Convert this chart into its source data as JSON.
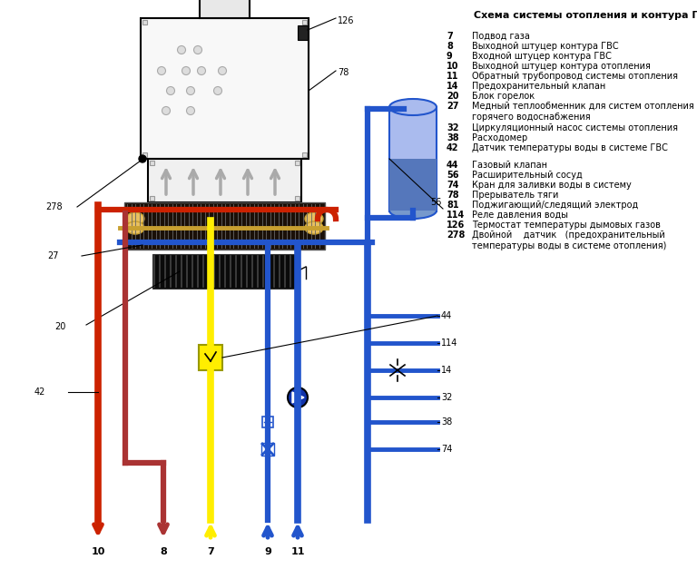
{
  "title": "Схема системы отопления и контура ГВС",
  "bg_color": "#ffffff",
  "legend_col1": [
    [
      "7",
      "Подвод газа"
    ],
    [
      "8",
      "Выходной штуцер контура ГВС"
    ],
    [
      "9",
      "Входной штуцер контура ГВС"
    ],
    [
      "10",
      "Выходной штуцер контура отопления"
    ],
    [
      "11",
      "Обратный трубопровод системы отопления"
    ],
    [
      "14",
      "Предохранительный клапан"
    ],
    [
      "20",
      "Блок горелок"
    ],
    [
      "27",
      "Медный теплообменник для систем отопления и\nгорячего водоснабжения"
    ],
    [
      "32",
      "Циркуляционный насос системы отопления"
    ],
    [
      "38",
      "Расходомер"
    ],
    [
      "42",
      "Датчик температуры воды в системе ГВС"
    ]
  ],
  "legend_col2": [
    [
      "44",
      "Газовый клапан"
    ],
    [
      "56",
      "Расширительный сосуд"
    ],
    [
      "74",
      "Кран для заливки воды в систему"
    ],
    [
      "78",
      "Прерыватель тяги"
    ],
    [
      "81",
      "Поджигающий/следящий электрод"
    ],
    [
      "114",
      "Реле давления воды"
    ],
    [
      "126",
      "Термостат температуры дымовых газов"
    ],
    [
      "278",
      "Двойной    датчик   (предохранительный\nтемпературы воды в системе отопления)"
    ]
  ],
  "red_color": "#cc2200",
  "dark_red": "#aa3333",
  "blue_color": "#2255cc",
  "yellow_color": "#ffee00",
  "gray_color": "#888888",
  "boiler_fill": "#f8f8f8",
  "burner_fill": "#f0f0f0"
}
